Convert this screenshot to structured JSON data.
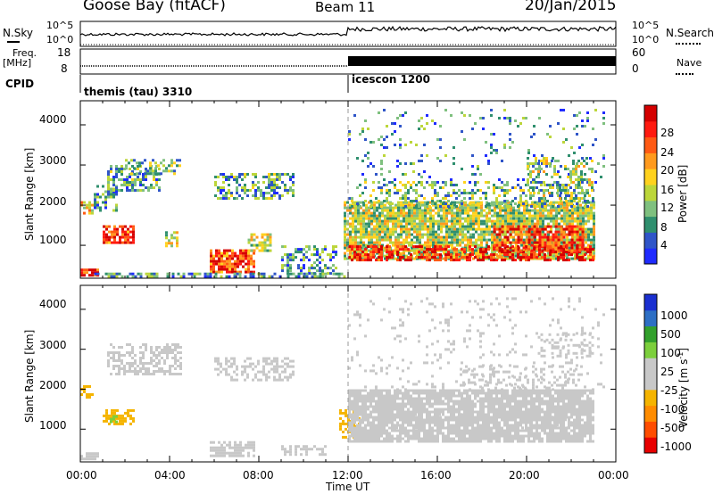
{
  "header": {
    "station": "Goose Bay (fitACF)",
    "beam": "Beam 11",
    "date": "20/Jan/2015"
  },
  "status_panel": {
    "nsky_label": "N.Sky",
    "nsky_ticks": [
      "10^5",
      "10^0"
    ],
    "nsearch_label": "N.Search",
    "nsearch_ticks": [
      "10^5",
      "10^0"
    ],
    "freq_label": "Freq.",
    "freq_unit": "[MHz]",
    "freq_ticks": [
      "18",
      "8"
    ],
    "nave_label": "Nave",
    "nave_ticks": [
      "60",
      "0"
    ],
    "cpid_label": "CPID",
    "cpid_segments": [
      {
        "name": "themis (tau) 3310",
        "start_hour": 0
      },
      {
        "name": "icescon 1200",
        "start_hour": 12
      }
    ]
  },
  "chart_data": [
    {
      "type": "heatmap",
      "parameter": "Power",
      "ylabel": "Slant Range [km]",
      "ylim": [
        180,
        4600
      ],
      "y_ticks": [
        "1000",
        "2000",
        "3000",
        "4000"
      ],
      "x_ticks": [
        "00:00",
        "04:00",
        "08:00",
        "12:00",
        "16:00",
        "20:00",
        "00:00"
      ],
      "xlim_hours": [
        0,
        24
      ],
      "colorbar": {
        "label": "Power [dB]",
        "ticks": [
          "4",
          "8",
          "12",
          "16",
          "20",
          "24",
          "28"
        ],
        "range": [
          0,
          30
        ],
        "colors": [
          "#1f2bff",
          "#2f55c8",
          "#2f8f6e",
          "#7fc07f",
          "#bcd63a",
          "#ffd21e",
          "#ff9a1e",
          "#ff5a14",
          "#ff1a10",
          "#d40000"
        ]
      },
      "regions": [
        {
          "t0": 0.0,
          "t1": 0.8,
          "r0": 250,
          "r1": 420,
          "level": 26,
          "density": 0.9
        },
        {
          "t0": 0.0,
          "t1": 0.5,
          "r0": 1800,
          "r1": 2100,
          "level": 18,
          "density": 0.5
        },
        {
          "t0": 0.6,
          "t1": 1.6,
          "r0": 1900,
          "r1": 2500,
          "level": 8,
          "density": 0.45
        },
        {
          "t0": 1.0,
          "t1": 2.4,
          "r0": 1100,
          "r1": 1500,
          "level": 24,
          "density": 0.8
        },
        {
          "t0": 1.2,
          "t1": 3.5,
          "r0": 2400,
          "r1": 3000,
          "level": 9,
          "density": 0.5
        },
        {
          "t0": 2.0,
          "t1": 4.5,
          "r0": 2800,
          "r1": 3150,
          "level": 10,
          "density": 0.45
        },
        {
          "t0": 3.8,
          "t1": 4.4,
          "r0": 1000,
          "r1": 1350,
          "level": 14,
          "density": 0.5
        },
        {
          "t0": 6.0,
          "t1": 9.5,
          "r0": 2200,
          "r1": 2800,
          "level": 9,
          "density": 0.45
        },
        {
          "t0": 5.8,
          "t1": 7.8,
          "r0": 350,
          "r1": 900,
          "level": 24,
          "density": 0.8
        },
        {
          "t0": 7.5,
          "t1": 8.5,
          "r0": 900,
          "r1": 1300,
          "level": 14,
          "density": 0.6
        },
        {
          "t0": 9.0,
          "t1": 11.5,
          "r0": 300,
          "r1": 1000,
          "level": 8,
          "density": 0.45
        },
        {
          "t0": 0.5,
          "t1": 11.8,
          "r0": 200,
          "r1": 320,
          "level": 7,
          "density": 0.55
        },
        {
          "t0": 11.8,
          "t1": 23.0,
          "r0": 700,
          "r1": 2100,
          "level": 13,
          "density": 0.85
        },
        {
          "t0": 12.0,
          "t1": 23.0,
          "r0": 650,
          "r1": 1000,
          "level": 27,
          "density": 0.55
        },
        {
          "t0": 12.0,
          "t1": 23.0,
          "r0": 2000,
          "r1": 2600,
          "level": 10,
          "density": 0.35
        },
        {
          "t0": 12.0,
          "t1": 23.5,
          "r0": 2600,
          "r1": 4400,
          "level": 7,
          "density": 0.08
        },
        {
          "t0": 18.5,
          "t1": 22.5,
          "r0": 900,
          "r1": 1500,
          "level": 25,
          "density": 0.6
        },
        {
          "t0": 20.0,
          "t1": 23.0,
          "r0": 2200,
          "r1": 3200,
          "level": 12,
          "density": 0.35
        }
      ]
    },
    {
      "type": "heatmap",
      "parameter": "Velocity",
      "ylabel": "Slant Range [km]",
      "ylim": [
        180,
        4600
      ],
      "y_ticks": [
        "1000",
        "2000",
        "3000",
        "4000"
      ],
      "x_ticks": [
        "00:00",
        "04:00",
        "08:00",
        "12:00",
        "16:00",
        "20:00",
        "00:00"
      ],
      "xlabel": "Time UT",
      "xlim_hours": [
        0,
        24
      ],
      "colorbar": {
        "label": "Velocity [m s^-1]",
        "ticks": [
          "1000",
          "500",
          "100",
          "25",
          "-25",
          "-100",
          "-500",
          "-1000"
        ],
        "range": [
          -1200,
          1200
        ],
        "colors": [
          "#e80000",
          "#ff4d00",
          "#ff8c00",
          "#f5b400",
          "#c8c8c8",
          "#c8c8c8",
          "#7ccf3c",
          "#32a02c",
          "#2d6fc4",
          "#1a2fd0"
        ]
      },
      "regions": [
        {
          "t0": 0.0,
          "t1": 0.8,
          "r0": 250,
          "r1": 420,
          "level": 0,
          "density": 0.8
        },
        {
          "t0": 0.0,
          "t1": 0.6,
          "r0": 1800,
          "r1": 2100,
          "level": -300,
          "density": 0.5
        },
        {
          "t0": 1.0,
          "t1": 2.4,
          "r0": 1100,
          "r1": 1500,
          "level": -300,
          "density": 0.7
        },
        {
          "t0": 1.2,
          "t1": 1.8,
          "r0": 1150,
          "r1": 1350,
          "level": 400,
          "density": 0.5
        },
        {
          "t0": 1.2,
          "t1": 4.5,
          "r0": 2400,
          "r1": 3150,
          "level": 0,
          "density": 0.5
        },
        {
          "t0": 6.0,
          "t1": 9.5,
          "r0": 2200,
          "r1": 2800,
          "level": 0,
          "density": 0.45
        },
        {
          "t0": 5.8,
          "t1": 7.8,
          "r0": 350,
          "r1": 700,
          "level": -150,
          "density": 0.7
        },
        {
          "t0": 9.0,
          "t1": 11.0,
          "r0": 350,
          "r1": 600,
          "level": -150,
          "density": 0.55
        },
        {
          "t0": 11.6,
          "t1": 12.5,
          "r0": 800,
          "r1": 1500,
          "level": -300,
          "density": 0.6
        },
        {
          "t0": 12.0,
          "t1": 23.0,
          "r0": 700,
          "r1": 2000,
          "level": 0,
          "density": 0.85
        },
        {
          "t0": 12.0,
          "t1": 23.5,
          "r0": 2000,
          "r1": 4300,
          "level": 0,
          "density": 0.08
        },
        {
          "t0": 17.0,
          "t1": 22.5,
          "r0": 2000,
          "r1": 2600,
          "level": 120,
          "density": 0.25
        },
        {
          "t0": 20.5,
          "t1": 23.0,
          "r0": 2800,
          "r1": 3400,
          "level": 150,
          "density": 0.3
        },
        {
          "t0": 14.0,
          "t1": 22.0,
          "r0": 1000,
          "r1": 1400,
          "level": -200,
          "density": 0.12
        }
      ]
    }
  ]
}
